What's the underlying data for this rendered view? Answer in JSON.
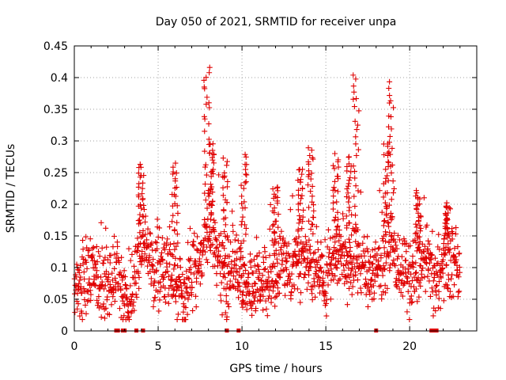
{
  "chart_data": {
    "type": "scatter",
    "title": "Day 050 of 2021, SRMTID for receiver unpa",
    "xlabel": "GPS time / hours",
    "ylabel": "SRMTID / TECUs",
    "xlim": [
      0,
      24
    ],
    "ylim": [
      0,
      0.45
    ],
    "x_ticks": [
      0,
      5,
      10,
      15,
      20
    ],
    "x_tick_labels": [
      "0",
      "5",
      "10",
      "15",
      "20"
    ],
    "y_ticks": [
      0,
      0.05,
      0.1,
      0.15,
      0.2,
      0.25,
      0.3,
      0.35,
      0.4,
      0.45
    ],
    "y_tick_labels": [
      "0",
      "0.05",
      "0.1",
      "0.15",
      "0.2",
      "0.25",
      "0.3",
      "0.35",
      "0.4",
      "0.45"
    ],
    "grid": true,
    "marker": "+",
    "color": "#e00000",
    "x_range_of_data": [
      0,
      23
    ],
    "profile": [
      {
        "x": 0.0,
        "y": 0.07
      },
      {
        "x": 0.5,
        "y": 0.075
      },
      {
        "x": 1.0,
        "y": 0.09
      },
      {
        "x": 1.5,
        "y": 0.085
      },
      {
        "x": 2.0,
        "y": 0.07
      },
      {
        "x": 2.5,
        "y": 0.09
      },
      {
        "x": 3.0,
        "y": 0.06
      },
      {
        "x": 3.3,
        "y": 0.05
      },
      {
        "x": 3.7,
        "y": 0.1
      },
      {
        "x": 4.2,
        "y": 0.14
      },
      {
        "x": 4.7,
        "y": 0.1
      },
      {
        "x": 5.2,
        "y": 0.09
      },
      {
        "x": 5.7,
        "y": 0.1
      },
      {
        "x": 6.1,
        "y": 0.08
      },
      {
        "x": 6.5,
        "y": 0.05
      },
      {
        "x": 7.0,
        "y": 0.09
      },
      {
        "x": 7.5,
        "y": 0.11
      },
      {
        "x": 8.0,
        "y": 0.16
      },
      {
        "x": 8.5,
        "y": 0.12
      },
      {
        "x": 9.0,
        "y": 0.08
      },
      {
        "x": 9.5,
        "y": 0.09
      },
      {
        "x": 10.0,
        "y": 0.085
      },
      {
        "x": 10.5,
        "y": 0.07
      },
      {
        "x": 11.0,
        "y": 0.075
      },
      {
        "x": 11.5,
        "y": 0.08
      },
      {
        "x": 12.0,
        "y": 0.09
      },
      {
        "x": 12.5,
        "y": 0.1
      },
      {
        "x": 13.0,
        "y": 0.1
      },
      {
        "x": 13.5,
        "y": 0.11
      },
      {
        "x": 14.0,
        "y": 0.115
      },
      {
        "x": 14.5,
        "y": 0.1
      },
      {
        "x": 15.0,
        "y": 0.09
      },
      {
        "x": 15.5,
        "y": 0.11
      },
      {
        "x": 16.0,
        "y": 0.12
      },
      {
        "x": 16.5,
        "y": 0.1
      },
      {
        "x": 17.0,
        "y": 0.11
      },
      {
        "x": 17.5,
        "y": 0.09
      },
      {
        "x": 18.0,
        "y": 0.1
      },
      {
        "x": 18.5,
        "y": 0.12
      },
      {
        "x": 19.0,
        "y": 0.12
      },
      {
        "x": 19.5,
        "y": 0.1
      },
      {
        "x": 20.0,
        "y": 0.08
      },
      {
        "x": 20.5,
        "y": 0.1
      },
      {
        "x": 21.0,
        "y": 0.11
      },
      {
        "x": 21.5,
        "y": 0.08
      },
      {
        "x": 22.0,
        "y": 0.1
      },
      {
        "x": 22.5,
        "y": 0.11
      },
      {
        "x": 23.0,
        "y": 0.1
      }
    ],
    "peaks": [
      {
        "x": 4.0,
        "y": 0.26
      },
      {
        "x": 6.0,
        "y": 0.265
      },
      {
        "x": 7.9,
        "y": 0.42
      },
      {
        "x": 8.2,
        "y": 0.3
      },
      {
        "x": 9.0,
        "y": 0.27
      },
      {
        "x": 10.1,
        "y": 0.275
      },
      {
        "x": 12.0,
        "y": 0.23
      },
      {
        "x": 13.5,
        "y": 0.258
      },
      {
        "x": 14.1,
        "y": 0.29
      },
      {
        "x": 15.6,
        "y": 0.275
      },
      {
        "x": 16.4,
        "y": 0.275
      },
      {
        "x": 16.8,
        "y": 0.405
      },
      {
        "x": 18.9,
        "y": 0.39
      },
      {
        "x": 18.6,
        "y": 0.3
      },
      {
        "x": 20.5,
        "y": 0.22
      },
      {
        "x": 22.2,
        "y": 0.2
      }
    ],
    "zero_markers_x": [
      2.5,
      2.6,
      2.9,
      3.0,
      3.7,
      4.1,
      9.1,
      9.8,
      18.0,
      21.3,
      21.4,
      21.5,
      21.6
    ]
  }
}
